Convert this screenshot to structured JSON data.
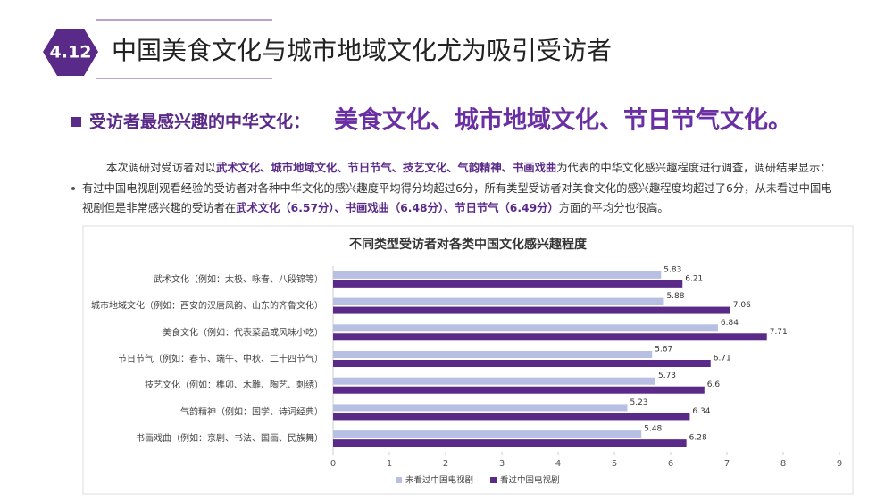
{
  "header": {
    "badge": "4.12",
    "title": "中国美食文化与城市地域文化尤为吸引受访者"
  },
  "subheading": {
    "lead": "受访者最感兴趣的中华文化：",
    "highlight": "美食文化、城市地域文化、节日节气文化。"
  },
  "intro": {
    "before": "本次调研对受访者对以",
    "bold": "武术文化、城市地域文化、节日节气、技艺文化、气韵精神、书画戏曲",
    "after": "为代表的中华文化感兴趣程度进行调查，调研结果显示："
  },
  "bullet": {
    "before": "有过中国电视剧观看经验的受访者对各种中华文化的感兴趣度平均得分均超过6分，所有类型受访者对美食文化的感兴趣程度均超过了6分，从未看过中国电视剧但是非常感兴趣的受访者在",
    "bold": "武术文化（6.57分）、书画戏曲（6.48分）、节日节气（6.49分）",
    "after": "方面的平均分也很高。"
  },
  "chart_data": {
    "type": "hbar",
    "title": "不同类型受访者对各类中国文化感兴趣程度",
    "categories": [
      "武术文化（例如：太极、咏春、八段锦等）",
      "城市地域文化（例如：西安的汉唐风韵、山东的齐鲁文化）",
      "美食文化（例如：代表菜品或风味小吃）",
      "节日节气（例如：春节、端午、中秋、二十四节气）",
      "技艺文化（例如：榫卯、木雕、陶艺、刺绣）",
      "气韵精神（例如：国学、诗词经典）",
      "书画戏曲（例如：京剧、书法、国画、民族舞）"
    ],
    "series": [
      {
        "name": "未看过中国电视剧",
        "color": "#b7bfe2",
        "values": [
          5.83,
          5.88,
          6.84,
          5.67,
          5.73,
          5.23,
          5.48
        ]
      },
      {
        "name": "看过中国电视剧",
        "color": "#5a2a88",
        "values": [
          6.21,
          7.06,
          7.71,
          6.71,
          6.6,
          6.34,
          6.28
        ]
      }
    ],
    "xlim": [
      0,
      9
    ],
    "xticks": [
      0,
      1,
      2,
      3,
      4,
      5,
      6,
      7,
      8,
      9
    ],
    "grid": false,
    "legend": "bottom"
  }
}
